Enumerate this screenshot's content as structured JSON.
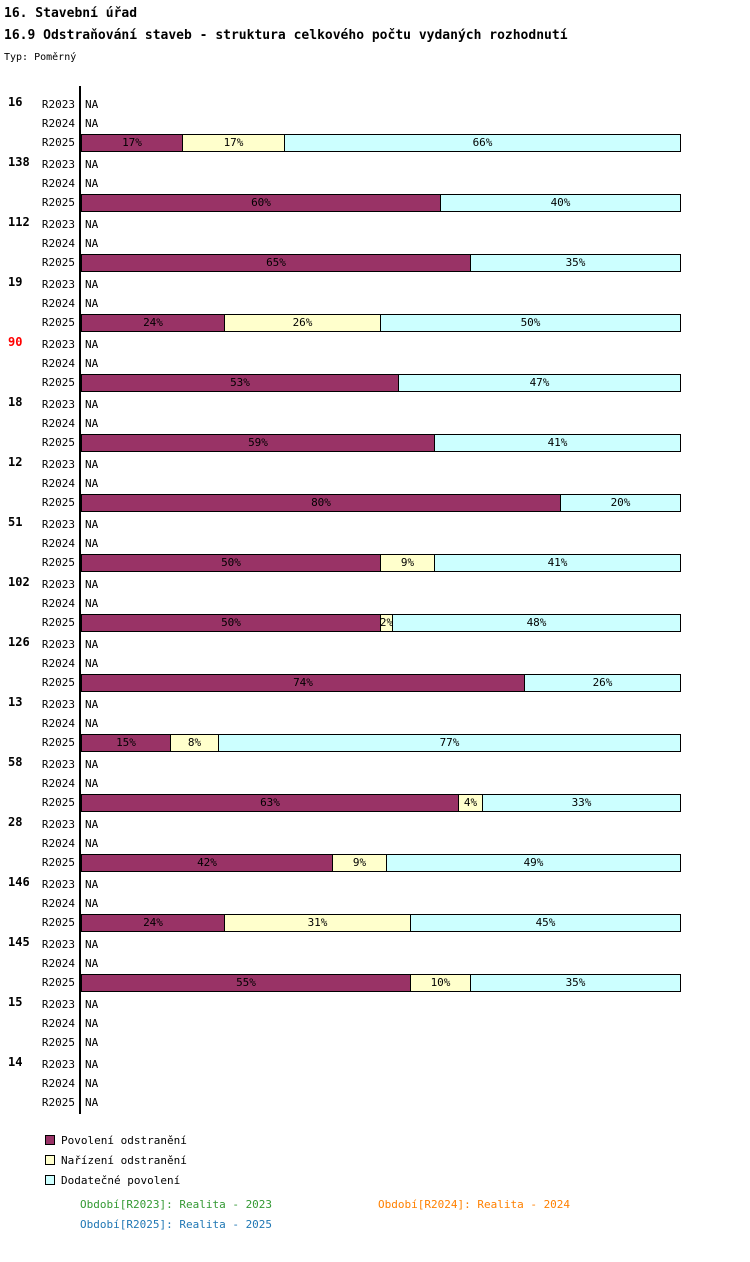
{
  "title": "16. Stavební úřad",
  "subtitle": "16.9 Odstraňování staveb - struktura celkového počtu vydaných rozhodnutí",
  "type_label": "Typ: Poměrný",
  "colors": {
    "povoleni": "#993366",
    "narizeni": "#FFFFCC",
    "dodatecne": "#CCFFFF",
    "highlight_label": "#FF0000",
    "normal_label": "#000000",
    "footer_2023": "#339933",
    "footer_2024": "#FF8000",
    "footer_2025": "#1F77B4"
  },
  "legend": [
    {
      "label": "Povolení odstranění",
      "color": "#993366"
    },
    {
      "label": "Nařízení odstranění",
      "color": "#FFFFCC"
    },
    {
      "label": "Dodatečné povolení",
      "color": "#CCFFFF"
    }
  ],
  "footer": [
    {
      "label": "Období[R2023]: Realita - 2023",
      "color": "#339933"
    },
    {
      "label": "Období[R2024]: Realita - 2024",
      "color": "#FF8000"
    },
    {
      "label": "Období[R2025]: Realita - 2025",
      "color": "#1F77B4"
    }
  ],
  "chart_data": {
    "type": "bar",
    "stacked": true,
    "orientation": "horizontal",
    "unit": "%",
    "xlim": [
      0,
      100
    ],
    "row_years": [
      "R2023",
      "R2024",
      "R2025"
    ],
    "na_text": "NA",
    "series_names": [
      "Povolení odstranění",
      "Nařízení odstranění",
      "Dodatečné povolení"
    ],
    "series_keys": [
      "povoleni",
      "narizeni",
      "dodatecne"
    ],
    "groups": [
      {
        "label": "16",
        "label_color": "#000000",
        "r2023": "NA",
        "r2024": "NA",
        "r2025": [
          17,
          17,
          66
        ]
      },
      {
        "label": "138",
        "label_color": "#000000",
        "r2023": "NA",
        "r2024": "NA",
        "r2025": [
          60,
          0,
          40
        ]
      },
      {
        "label": "112",
        "label_color": "#000000",
        "r2023": "NA",
        "r2024": "NA",
        "r2025": [
          65,
          0,
          35
        ]
      },
      {
        "label": "19",
        "label_color": "#000000",
        "r2023": "NA",
        "r2024": "NA",
        "r2025": [
          24,
          26,
          50
        ]
      },
      {
        "label": "90",
        "label_color": "#FF0000",
        "r2023": "NA",
        "r2024": "NA",
        "r2025": [
          53,
          0,
          47
        ]
      },
      {
        "label": "18",
        "label_color": "#000000",
        "r2023": "NA",
        "r2024": "NA",
        "r2025": [
          59,
          0,
          41
        ]
      },
      {
        "label": "12",
        "label_color": "#000000",
        "r2023": "NA",
        "r2024": "NA",
        "r2025": [
          80,
          0,
          20
        ]
      },
      {
        "label": "51",
        "label_color": "#000000",
        "r2023": "NA",
        "r2024": "NA",
        "r2025": [
          50,
          9,
          41
        ]
      },
      {
        "label": "102",
        "label_color": "#000000",
        "r2023": "NA",
        "r2024": "NA",
        "r2025": [
          50,
          2,
          48
        ]
      },
      {
        "label": "126",
        "label_color": "#000000",
        "r2023": "NA",
        "r2024": "NA",
        "r2025": [
          74,
          0,
          26
        ]
      },
      {
        "label": "13",
        "label_color": "#000000",
        "r2023": "NA",
        "r2024": "NA",
        "r2025": [
          15,
          8,
          77
        ]
      },
      {
        "label": "58",
        "label_color": "#000000",
        "r2023": "NA",
        "r2024": "NA",
        "r2025": [
          63,
          4,
          33
        ]
      },
      {
        "label": "28",
        "label_color": "#000000",
        "r2023": "NA",
        "r2024": "NA",
        "r2025": [
          42,
          9,
          49
        ]
      },
      {
        "label": "146",
        "label_color": "#000000",
        "r2023": "NA",
        "r2024": "NA",
        "r2025": [
          24,
          31,
          45
        ]
      },
      {
        "label": "145",
        "label_color": "#000000",
        "r2023": "NA",
        "r2024": "NA",
        "r2025": [
          55,
          10,
          35
        ]
      },
      {
        "label": "15",
        "label_color": "#000000",
        "r2023": "NA",
        "r2024": "NA",
        "r2025": "NA"
      },
      {
        "label": "14",
        "label_color": "#000000",
        "r2023": "NA",
        "r2024": "NA",
        "r2025": "NA"
      }
    ]
  }
}
